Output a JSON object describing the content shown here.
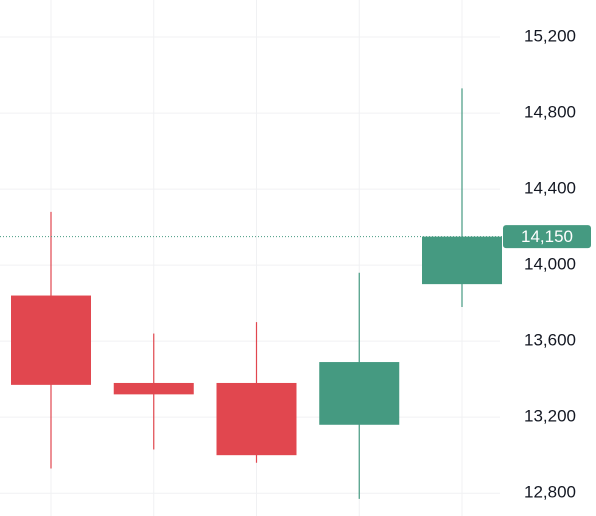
{
  "chart_data": {
    "type": "candlestick",
    "categories": [
      null,
      null,
      null,
      null,
      null
    ],
    "open": [
      13840,
      13380,
      13380,
      13160,
      13900
    ],
    "high": [
      14280,
      13640,
      13700,
      13960,
      14930
    ],
    "low": [
      12930,
      13030,
      12960,
      12770,
      13780
    ],
    "close": [
      13370,
      13320,
      13000,
      13490,
      14150
    ],
    "up_color": "#459a81",
    "down_color": "#e1474f",
    "ylim": [
      12680,
      15395
    ],
    "yticks": [
      {
        "value": 12800,
        "label": "12,800"
      },
      {
        "value": 13200,
        "label": "13,200"
      },
      {
        "value": 13600,
        "label": "13,600"
      },
      {
        "value": 14000,
        "label": "14,000"
      },
      {
        "value": 14400,
        "label": "14,400"
      },
      {
        "value": 14800,
        "label": "14,800"
      },
      {
        "value": 15200,
        "label": "15,200"
      }
    ],
    "last_price": {
      "value": 14150,
      "label": "14,150"
    },
    "grid": true
  }
}
